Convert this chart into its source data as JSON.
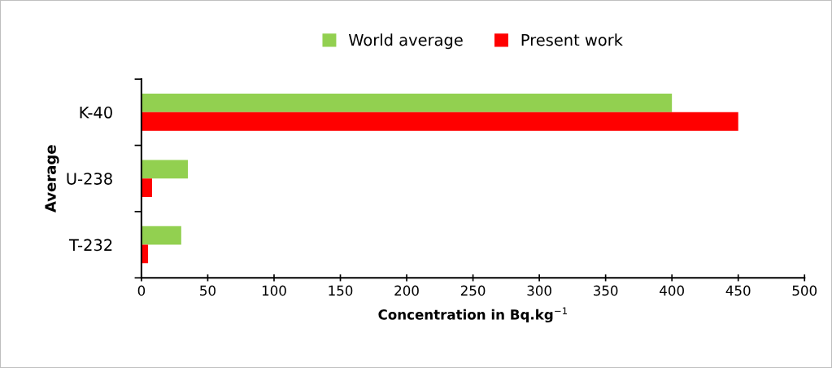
{
  "chart_data": {
    "type": "bar",
    "orientation": "horizontal",
    "xlabel": "Concentration in Bq.kg$^{−1}$",
    "ylabel": "Average",
    "categories": [
      "K-40",
      "U-238",
      "T-232"
    ],
    "series": [
      {
        "name": "World average",
        "color": "#92d050",
        "values": [
          400,
          35,
          30
        ]
      },
      {
        "name": "Present work",
        "color": "#ff0000",
        "values": [
          450,
          8,
          5
        ]
      }
    ],
    "xlim": [
      0,
      500
    ],
    "xticks": [
      0,
      50,
      100,
      150,
      200,
      250,
      300,
      350,
      400,
      450,
      500
    ],
    "grid": false,
    "legend": "top"
  }
}
